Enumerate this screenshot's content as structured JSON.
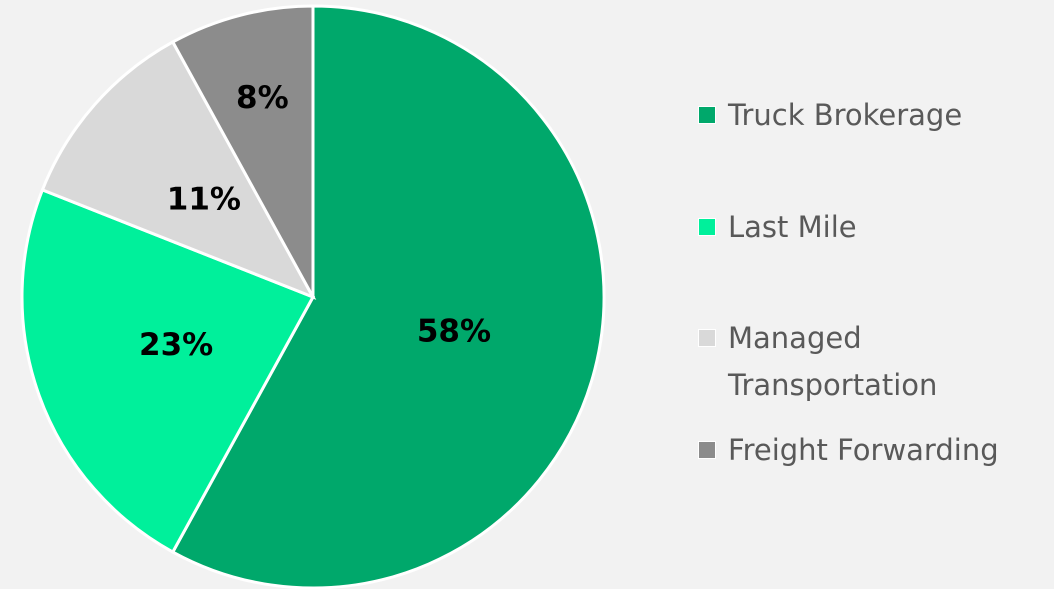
{
  "chart_data": {
    "type": "pie",
    "categories": [
      "Truck Brokerage",
      "Last Mile",
      "Managed Transportation",
      "Freight Forwarding"
    ],
    "values": [
      58,
      23,
      11,
      8
    ],
    "value_labels": [
      "58%",
      "23%",
      "11%",
      "8%"
    ],
    "colors": [
      "#00a86b",
      "#00f09b",
      "#d9d9d9",
      "#8c8c8c"
    ],
    "legend": "right"
  }
}
